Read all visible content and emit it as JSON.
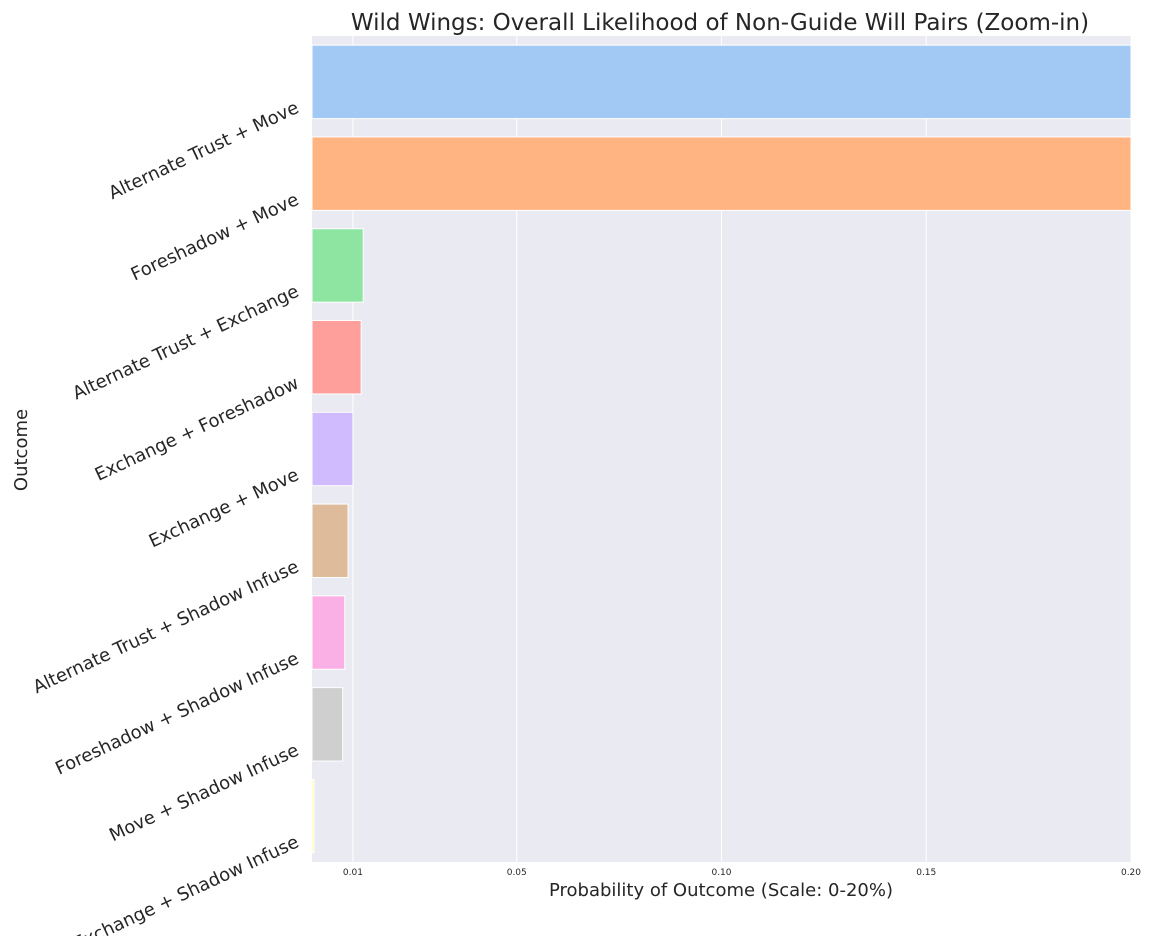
{
  "chart_data": {
    "type": "bar",
    "orientation": "horizontal",
    "title": "Wild Wings: Overall Likelihood of Non-Guide Will Pairs (Zoom-in)",
    "xlabel": "Probability of Outcome (Scale: 0-20%)",
    "ylabel": "Outcome",
    "xlim": [
      0,
      0.2
    ],
    "x_ticks": [
      {
        "value": 0.01,
        "label": "0.01"
      },
      {
        "value": 0.05,
        "label": "0.05"
      },
      {
        "value": 0.1,
        "label": "0.10"
      },
      {
        "value": 0.15,
        "label": "0.15"
      },
      {
        "value": 0.2,
        "label": "0.20"
      }
    ],
    "grid": true,
    "categories": [
      "Alternate Trust + Move",
      "Foreshadow + Move",
      "Alternate Trust + Exchange",
      "Exchange + Foreshadow",
      "Exchange + Move",
      "Alternate Trust + Shadow Infuse",
      "Foreshadow + Shadow Infuse",
      "Move + Shadow Infuse",
      "Exchange + Shadow Infuse"
    ],
    "values": [
      0.2,
      0.2,
      0.0125,
      0.012,
      0.01,
      0.0088,
      0.008,
      0.0075,
      0.0005
    ],
    "colors": [
      "#a1c9f4",
      "#ffb482",
      "#8de5a1",
      "#ff9f9b",
      "#d0bbff",
      "#debb9b",
      "#fab0e4",
      "#cfcfcf",
      "#fffea3"
    ],
    "background_color": "#eaeaf2",
    "grid_color": "#ffffff"
  }
}
